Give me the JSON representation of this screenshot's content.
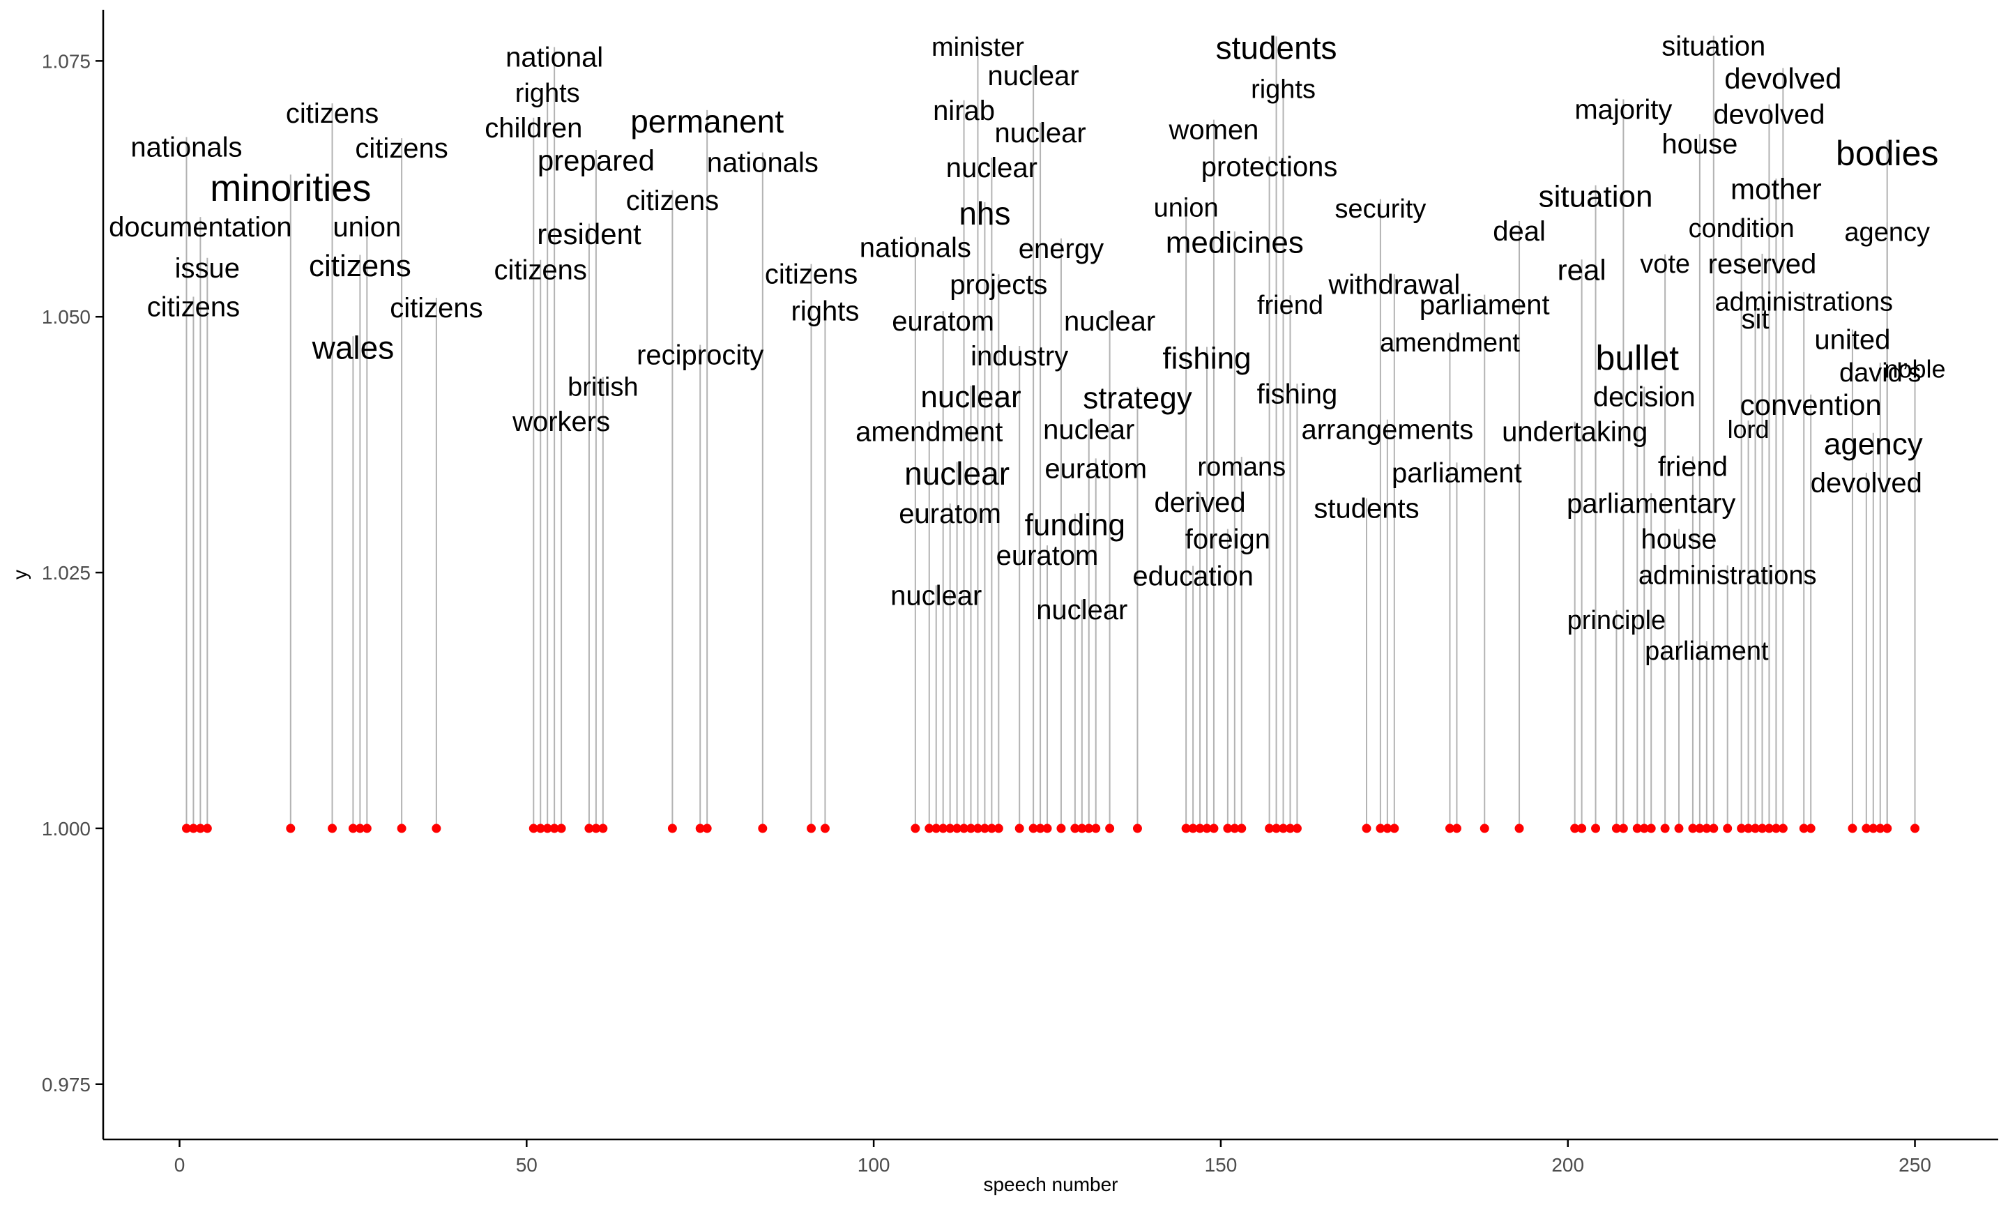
{
  "chart_data": {
    "type": "scatter",
    "xlabel": "speech number",
    "ylabel": "y",
    "xlim": [
      -11,
      262
    ],
    "ylim": [
      0.9696,
      1.08
    ],
    "x_ticks": [
      0,
      50,
      100,
      150,
      200,
      250
    ],
    "y_ticks": [
      0.975,
      1.0,
      1.025,
      1.05,
      1.075
    ],
    "y_tick_labels": [
      "0.975",
      "1.000",
      "1.025",
      "1.050",
      "1.075"
    ],
    "grid": false,
    "point_color": "#ff0000",
    "stem_color": "#b3b3b3",
    "points": [
      {
        "x": 1,
        "y": 1.0,
        "word": "nationals",
        "label_y": 1.0666,
        "size": 1.0
      },
      {
        "x": 2,
        "y": 1.0,
        "word": "citizens",
        "label_y": 1.051,
        "size": 1.0
      },
      {
        "x": 3,
        "y": 1.0,
        "word": "documentation",
        "label_y": 1.0588,
        "size": 1.0
      },
      {
        "x": 4,
        "y": 1.0,
        "word": "issue",
        "label_y": 1.0548,
        "size": 1.0
      },
      {
        "x": 16,
        "y": 1.0,
        "word": "minorities",
        "label_y": 1.0626,
        "size": 1.35
      },
      {
        "x": 22,
        "y": 1.0,
        "word": "citizens",
        "label_y": 1.0699,
        "size": 1.0
      },
      {
        "x": 25,
        "y": 1.0,
        "word": "wales",
        "label_y": 1.047,
        "size": 1.15
      },
      {
        "x": 26,
        "y": 1.0,
        "word": "citizens",
        "label_y": 1.055,
        "size": 1.1
      },
      {
        "x": 27,
        "y": 1.0,
        "word": "union",
        "label_y": 1.0588,
        "size": 1.0
      },
      {
        "x": 32,
        "y": 1.0,
        "word": "citizens",
        "label_y": 1.0665,
        "size": 1.0
      },
      {
        "x": 37,
        "y": 1.0,
        "word": "citizens",
        "label_y": 1.0509,
        "size": 1.0
      },
      {
        "x": 51,
        "y": 1.0,
        "word": "children",
        "label_y": 1.0685,
        "size": 1.0
      },
      {
        "x": 52,
        "y": 1.0,
        "word": "citizens",
        "label_y": 1.0546,
        "size": 1.0
      },
      {
        "x": 53,
        "y": 1.0,
        "word": "rights",
        "label_y": 1.0719,
        "size": 0.95
      },
      {
        "x": 54,
        "y": 1.0,
        "word": "national",
        "label_y": 1.0754,
        "size": 1.0
      },
      {
        "x": 55,
        "y": 1.0,
        "word": "workers",
        "label_y": 1.0398,
        "size": 1.0
      },
      {
        "x": 59,
        "y": 1.0,
        "word": "resident",
        "label_y": 1.0581,
        "size": 1.05
      },
      {
        "x": 60,
        "y": 1.0,
        "word": "prepared",
        "label_y": 1.0653,
        "size": 1.05
      },
      {
        "x": 61,
        "y": 1.0,
        "word": "british",
        "label_y": 1.0432,
        "size": 0.95
      },
      {
        "x": 71,
        "y": 1.0,
        "word": "citizens",
        "label_y": 1.0614,
        "size": 1.0
      },
      {
        "x": 75,
        "y": 1.0,
        "word": "reciprocity",
        "label_y": 1.0463,
        "size": 1.0
      },
      {
        "x": 76,
        "y": 1.0,
        "word": "permanent",
        "label_y": 1.0691,
        "size": 1.15
      },
      {
        "x": 84,
        "y": 1.0,
        "word": "nationals",
        "label_y": 1.0651,
        "size": 1.0
      },
      {
        "x": 91,
        "y": 1.0,
        "word": "citizens",
        "label_y": 1.0542,
        "size": 1.0
      },
      {
        "x": 93,
        "y": 1.0,
        "word": "rights",
        "label_y": 1.0506,
        "size": 1.0
      },
      {
        "x": 106,
        "y": 1.0,
        "word": "nationals",
        "label_y": 1.0568,
        "size": 1.0
      },
      {
        "x": 108,
        "y": 1.0,
        "word": "amendment",
        "label_y": 1.0388,
        "size": 1.0
      },
      {
        "x": 109,
        "y": 1.0,
        "word": "nuclear",
        "label_y": 1.0228,
        "size": 1.0
      },
      {
        "x": 110,
        "y": 1.0,
        "word": "euratom",
        "label_y": 1.0496,
        "size": 1.0
      },
      {
        "x": 111,
        "y": 1.0,
        "word": "euratom",
        "label_y": 1.0308,
        "size": 1.0
      },
      {
        "x": 112,
        "y": 1.0,
        "word": "nuclear",
        "label_y": 1.0347,
        "size": 1.15
      },
      {
        "x": 113,
        "y": 1.0,
        "word": "nirab",
        "label_y": 1.0702,
        "size": 1.0
      },
      {
        "x": 114,
        "y": 1.0,
        "word": "nuclear",
        "label_y": 1.0422,
        "size": 1.1
      },
      {
        "x": 115,
        "y": 1.0,
        "word": "minister",
        "label_y": 1.0764,
        "size": 0.95
      },
      {
        "x": 116,
        "y": 1.0,
        "word": "nhs",
        "label_y": 1.0601,
        "size": 1.15
      },
      {
        "x": 117,
        "y": 1.0,
        "word": "nuclear",
        "label_y": 1.0646,
        "size": 1.0
      },
      {
        "x": 118,
        "y": 1.0,
        "word": "projects",
        "label_y": 1.0532,
        "size": 1.0
      },
      {
        "x": 121,
        "y": 1.0,
        "word": "industry",
        "label_y": 1.0462,
        "size": 1.0
      },
      {
        "x": 123,
        "y": 1.0,
        "word": "nuclear",
        "label_y": 1.0736,
        "size": 1.0
      },
      {
        "x": 124,
        "y": 1.0,
        "word": "nuclear",
        "label_y": 1.068,
        "size": 1.0
      },
      {
        "x": 125,
        "y": 1.0,
        "word": "euratom",
        "label_y": 1.0267,
        "size": 1.0
      },
      {
        "x": 127,
        "y": 1.0,
        "word": "energy",
        "label_y": 1.0567,
        "size": 1.0
      },
      {
        "x": 129,
        "y": 1.0,
        "word": "funding",
        "label_y": 1.0297,
        "size": 1.1
      },
      {
        "x": 130,
        "y": 1.0,
        "word": "nuclear",
        "label_y": 1.0214,
        "size": 1.0
      },
      {
        "x": 131,
        "y": 1.0,
        "word": "nuclear",
        "label_y": 1.039,
        "size": 1.0
      },
      {
        "x": 132,
        "y": 1.0,
        "word": "euratom",
        "label_y": 1.0352,
        "size": 1.0
      },
      {
        "x": 134,
        "y": 1.0,
        "word": "nuclear",
        "label_y": 1.0496,
        "size": 1.0
      },
      {
        "x": 138,
        "y": 1.0,
        "word": "strategy",
        "label_y": 1.0421,
        "size": 1.1
      },
      {
        "x": 145,
        "y": 1.0,
        "word": "union",
        "label_y": 1.0607,
        "size": 0.95
      },
      {
        "x": 146,
        "y": 1.0,
        "word": "education",
        "label_y": 1.0247,
        "size": 1.0
      },
      {
        "x": 147,
        "y": 1.0,
        "word": "derived",
        "label_y": 1.0319,
        "size": 1.0
      },
      {
        "x": 148,
        "y": 1.0,
        "word": "fishing",
        "label_y": 1.046,
        "size": 1.1
      },
      {
        "x": 149,
        "y": 1.0,
        "word": "women",
        "label_y": 1.0683,
        "size": 1.0
      },
      {
        "x": 151,
        "y": 1.0,
        "word": "foreign",
        "label_y": 1.0283,
        "size": 1.0
      },
      {
        "x": 152,
        "y": 1.0,
        "word": "medicines",
        "label_y": 1.0573,
        "size": 1.1
      },
      {
        "x": 153,
        "y": 1.0,
        "word": "romans",
        "label_y": 1.0354,
        "size": 0.95
      },
      {
        "x": 157,
        "y": 1.0,
        "word": "protections",
        "label_y": 1.0647,
        "size": 1.0
      },
      {
        "x": 158,
        "y": 1.0,
        "word": "students",
        "label_y": 1.0763,
        "size": 1.15
      },
      {
        "x": 159,
        "y": 1.0,
        "word": "rights",
        "label_y": 1.0723,
        "size": 0.95
      },
      {
        "x": 160,
        "y": 1.0,
        "word": "friend",
        "label_y": 1.0512,
        "size": 0.95
      },
      {
        "x": 161,
        "y": 1.0,
        "word": "fishing",
        "label_y": 1.0425,
        "size": 1.0
      },
      {
        "x": 171,
        "y": 1.0,
        "word": "students",
        "label_y": 1.0313,
        "size": 1.0
      },
      {
        "x": 173,
        "y": 1.0,
        "word": "security",
        "label_y": 1.0606,
        "size": 0.95
      },
      {
        "x": 174,
        "y": 1.0,
        "word": "arrangements",
        "label_y": 1.039,
        "size": 1.0
      },
      {
        "x": 175,
        "y": 1.0,
        "word": "withdrawal",
        "label_y": 1.0532,
        "size": 1.0
      },
      {
        "x": 183,
        "y": 1.0,
        "word": "amendment",
        "label_y": 1.0475,
        "size": 0.95
      },
      {
        "x": 184,
        "y": 1.0,
        "word": "parliament",
        "label_y": 1.0348,
        "size": 1.0
      },
      {
        "x": 188,
        "y": 1.0,
        "word": "parliament",
        "label_y": 1.0512,
        "size": 1.0
      },
      {
        "x": 193,
        "y": 1.0,
        "word": "deal",
        "label_y": 1.0584,
        "size": 1.0
      },
      {
        "x": 201,
        "y": 1.0,
        "word": "undertaking",
        "label_y": 1.0388,
        "size": 1.0
      },
      {
        "x": 202,
        "y": 1.0,
        "word": "real",
        "label_y": 1.0546,
        "size": 1.05
      },
      {
        "x": 204,
        "y": 1.0,
        "word": "situation",
        "label_y": 1.0618,
        "size": 1.1
      },
      {
        "x": 207,
        "y": 1.0,
        "word": "principle",
        "label_y": 1.0204,
        "size": 0.95
      },
      {
        "x": 208,
        "y": 1.0,
        "word": "majority",
        "label_y": 1.0703,
        "size": 1.0
      },
      {
        "x": 210,
        "y": 1.0,
        "word": "bullet",
        "label_y": 1.046,
        "size": 1.25
      },
      {
        "x": 211,
        "y": 1.0,
        "word": "decision",
        "label_y": 1.0422,
        "size": 1.0
      },
      {
        "x": 212,
        "y": 1.0,
        "word": "parliamentary",
        "label_y": 1.0318,
        "size": 1.0
      },
      {
        "x": 214,
        "y": 1.0,
        "word": "vote",
        "label_y": 1.0552,
        "size": 0.95
      },
      {
        "x": 216,
        "y": 1.0,
        "word": "house",
        "label_y": 1.0283,
        "size": 1.0
      },
      {
        "x": 218,
        "y": 1.0,
        "word": "friend",
        "label_y": 1.0354,
        "size": 1.0
      },
      {
        "x": 219,
        "y": 1.0,
        "word": "house",
        "label_y": 1.0669,
        "size": 1.0
      },
      {
        "x": 220,
        "y": 1.0,
        "word": "parliament",
        "label_y": 1.0174,
        "size": 0.95
      },
      {
        "x": 221,
        "y": 1.0,
        "word": "situation",
        "label_y": 1.0765,
        "size": 1.0
      },
      {
        "x": 223,
        "y": 1.0,
        "word": "administrations",
        "label_y": 1.0248,
        "size": 0.95
      },
      {
        "x": 225,
        "y": 1.0,
        "word": "condition",
        "label_y": 1.0587,
        "size": 0.95
      },
      {
        "x": 226,
        "y": 1.0,
        "word": "lord",
        "label_y": 1.039,
        "size": 0.9
      },
      {
        "x": 227,
        "y": 1.0,
        "word": "sit",
        "label_y": 1.0498,
        "size": 1.0
      },
      {
        "x": 228,
        "y": 1.0,
        "word": "reserved",
        "label_y": 1.0552,
        "size": 1.0
      },
      {
        "x": 229,
        "y": 1.0,
        "word": "devolved",
        "label_y": 1.0698,
        "size": 1.0
      },
      {
        "x": 230,
        "y": 1.0,
        "word": "mother",
        "label_y": 1.0625,
        "size": 1.05
      },
      {
        "x": 231,
        "y": 1.0,
        "word": "devolved",
        "label_y": 1.0733,
        "size": 1.05
      },
      {
        "x": 234,
        "y": 1.0,
        "word": "administrations",
        "label_y": 1.0515,
        "size": 0.95
      },
      {
        "x": 235,
        "y": 1.0,
        "word": "convention",
        "label_y": 1.0414,
        "size": 1.05
      },
      {
        "x": 241,
        "y": 1.0,
        "word": "united",
        "label_y": 1.0478,
        "size": 1.0
      },
      {
        "x": 243,
        "y": 1.0,
        "word": "devolved",
        "label_y": 1.0338,
        "size": 1.0
      },
      {
        "x": 244,
        "y": 1.0,
        "word": "agency",
        "label_y": 1.0376,
        "size": 1.1
      },
      {
        "x": 245,
        "y": 1.0,
        "word": "david’s",
        "label_y": 1.0446,
        "size": 0.95
      },
      {
        "x": 246,
        "y": 1.0,
        "word": "agency",
        "label_y": 1.0583,
        "size": 0.95
      },
      {
        "x": 246,
        "y": 1.0,
        "word": "bodies",
        "label_y": 1.066,
        "size": 1.25
      },
      {
        "x": 250,
        "y": 1.0,
        "word": "noble",
        "label_y": 1.0449,
        "size": 0.9
      }
    ]
  }
}
